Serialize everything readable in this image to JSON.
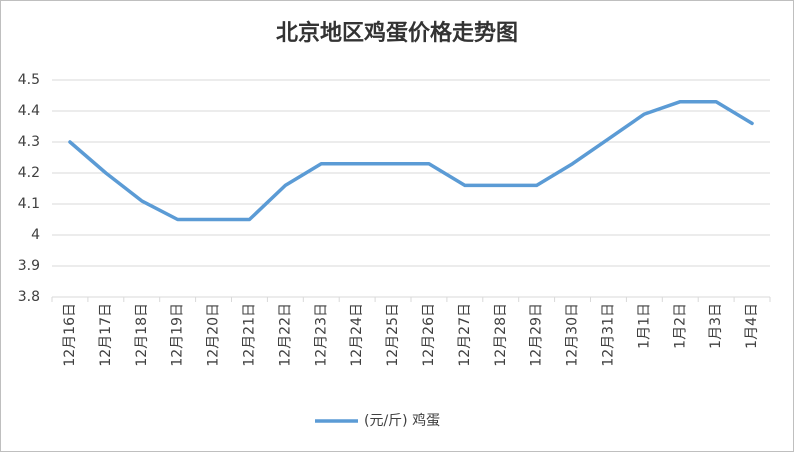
{
  "chart_data": {
    "type": "line",
    "title": "北京地区鸡蛋价格走势图",
    "categories": [
      "12月16日",
      "12月17日",
      "12月18日",
      "12月19日",
      "12月20日",
      "12月21日",
      "12月22日",
      "12月23日",
      "12月24日",
      "12月25日",
      "12月26日",
      "12月27日",
      "12月28日",
      "12月29日",
      "12月30日",
      "12月31日",
      "1月1日",
      "1月2日",
      "1月3日",
      "1月4日"
    ],
    "series": [
      {
        "name": "(元/斤) 鸡蛋",
        "color": "#5b9bd5",
        "values": [
          4.3,
          4.2,
          4.11,
          4.05,
          4.05,
          4.05,
          4.16,
          4.23,
          4.23,
          4.23,
          4.23,
          4.16,
          4.16,
          4.16,
          4.23,
          4.31,
          4.39,
          4.43,
          4.43,
          4.36
        ]
      }
    ],
    "ylim": [
      3.8,
      4.5
    ],
    "yticks": [
      3.8,
      3.9,
      4,
      4.1,
      4.2,
      4.3,
      4.4,
      4.5
    ],
    "grid": true,
    "legend": "bottom"
  }
}
